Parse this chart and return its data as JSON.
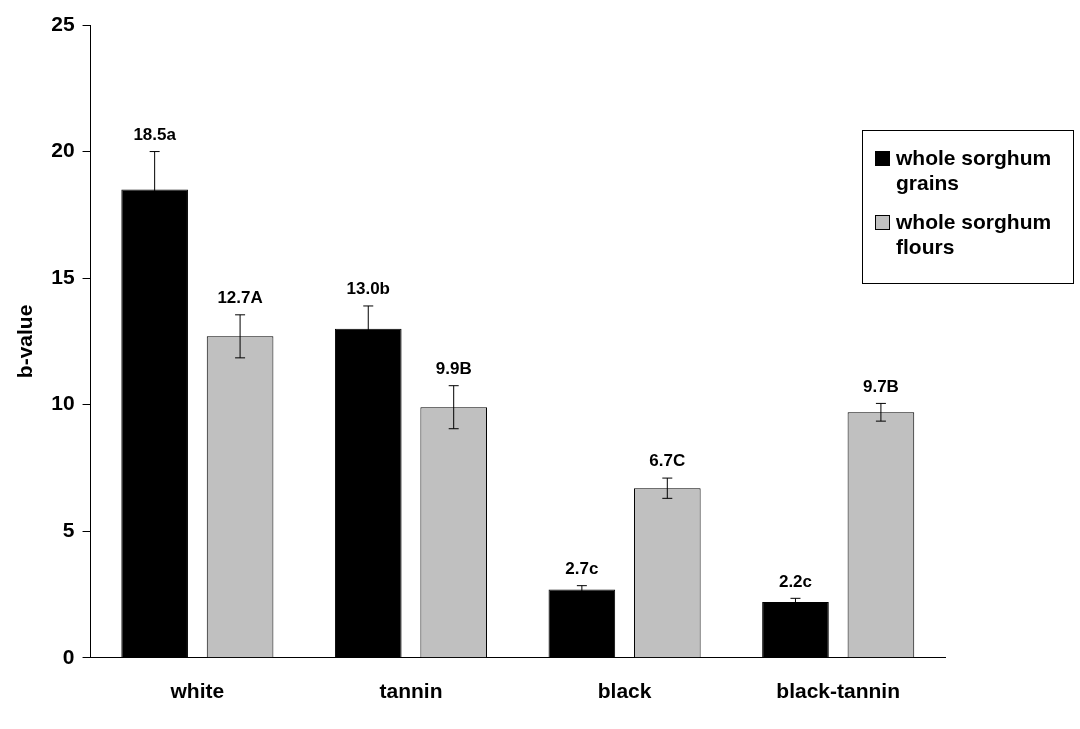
{
  "chart_data": {
    "type": "bar",
    "ylabel": "b-value",
    "categories": [
      "white",
      "tannin",
      "black",
      "black-tannin"
    ],
    "series": [
      {
        "name": "whole sorghum grains",
        "color": "#000000",
        "values": [
          18.5,
          13.0,
          2.7,
          2.2
        ],
        "errors": [
          1.5,
          0.9,
          0.15,
          0.15
        ],
        "value_labels": [
          "18.5a",
          "13.0b",
          "2.7c",
          "2.2c"
        ]
      },
      {
        "name": "whole sorghum flours",
        "color": "#c0c0c0",
        "values": [
          12.7,
          9.9,
          6.7,
          9.7
        ],
        "errors": [
          0.85,
          0.85,
          0.4,
          0.35
        ],
        "value_labels": [
          "12.7A",
          "9.9B",
          "6.7C",
          "9.7B"
        ]
      }
    ],
    "ylim": [
      0,
      25
    ],
    "yticks": [
      0,
      5,
      10,
      15,
      20,
      25
    ],
    "grid": false,
    "legend": "top right"
  }
}
